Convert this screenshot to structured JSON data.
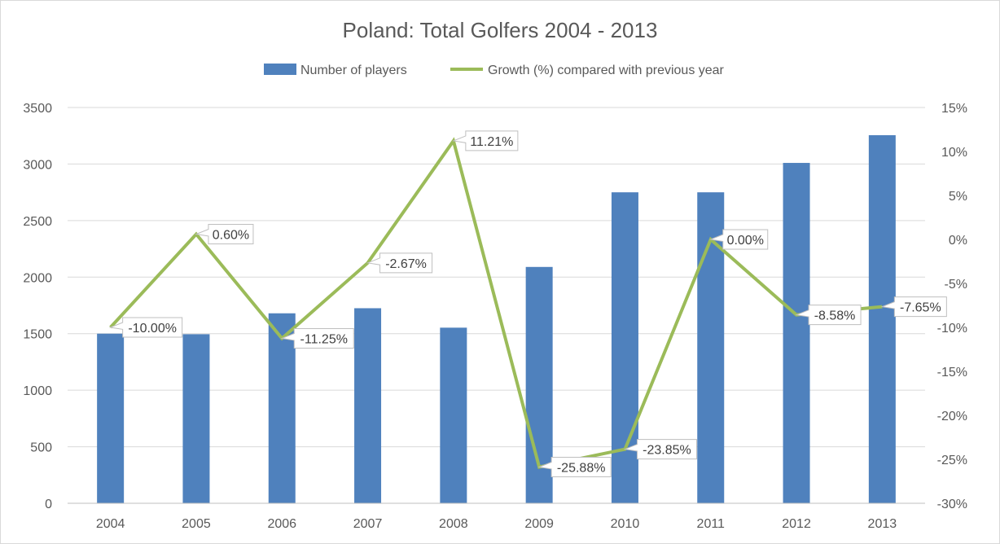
{
  "chart_data": {
    "type": "bar",
    "title": "Poland: Total Golfers 2004 - 2013",
    "categories": [
      "2004",
      "2005",
      "2006",
      "2007",
      "2008",
      "2009",
      "2010",
      "2011",
      "2012",
      "2013"
    ],
    "series": [
      {
        "name": "Number of players",
        "type": "bar",
        "axis": "left",
        "color": "#4f81bd",
        "values": [
          1500,
          1495,
          1680,
          1725,
          1553,
          2090,
          2750,
          2750,
          3010,
          3255
        ]
      },
      {
        "name": "Growth (%) compared with previous year",
        "type": "line",
        "axis": "right",
        "color": "#9bbb59",
        "values": [
          -10.0,
          0.6,
          -11.25,
          -2.67,
          11.21,
          -25.88,
          -23.85,
          0.0,
          -8.58,
          -7.65
        ],
        "labels": [
          "-10.00%",
          "0.60%",
          "-11.25%",
          "-2.67%",
          "11.21%",
          "-25.88%",
          "-23.85%",
          "0.00%",
          "-8.58%",
          "-7.65%"
        ]
      }
    ],
    "y_left": {
      "ylim": [
        0,
        3500
      ],
      "ticks": [
        "0",
        "500",
        "1000",
        "1500",
        "2000",
        "2500",
        "3000",
        "3500"
      ]
    },
    "y_right": {
      "ylim": [
        -30,
        15
      ],
      "ticks": [
        "-30%",
        "-25%",
        "-20%",
        "-15%",
        "-10%",
        "-5%",
        "0%",
        "5%",
        "10%",
        "15%"
      ]
    },
    "grid": true,
    "legend_position": "top"
  }
}
